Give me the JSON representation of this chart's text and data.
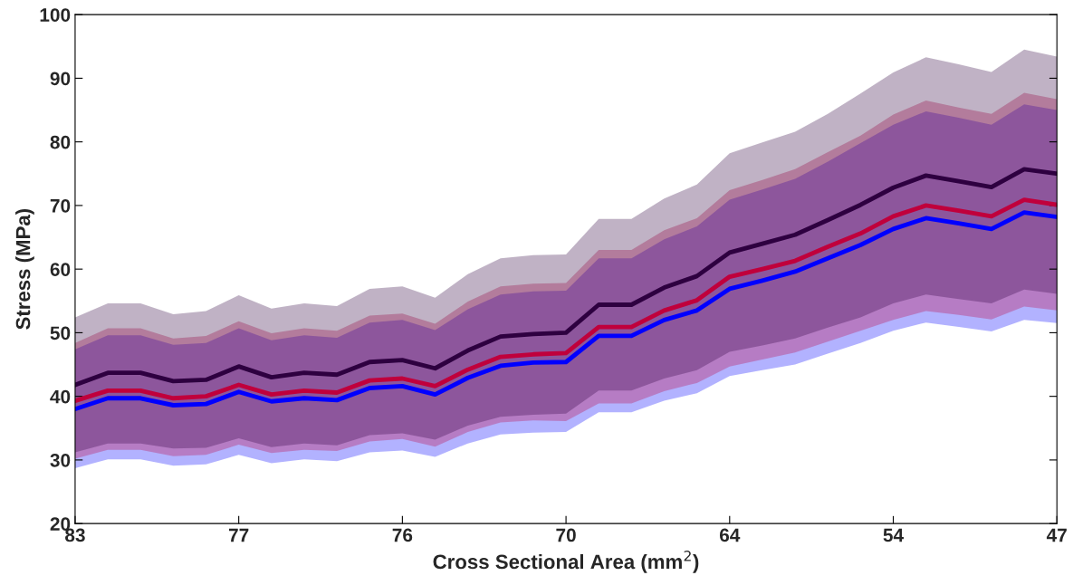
{
  "chart_data": {
    "type": "line",
    "xlabel": "Cross Sectional Area (mm$^{2}$)",
    "ylabel": "Stress (MPa)",
    "categories": [
      "83",
      null,
      null,
      null,
      null,
      "77",
      null,
      null,
      null,
      null,
      "76",
      null,
      null,
      null,
      null,
      "70",
      null,
      null,
      null,
      null,
      "64",
      null,
      null,
      null,
      null,
      "54",
      null,
      null,
      null,
      null,
      "47"
    ],
    "ylim": [
      20,
      100
    ],
    "yticks": [
      20,
      30,
      40,
      50,
      60,
      70,
      80,
      90,
      100
    ],
    "grid": false,
    "legend": false,
    "line_style": "solid",
    "marker": "none",
    "series": [
      {
        "color": "#0000ff",
        "values": [
          38.0,
          39.7,
          39.7,
          38.6,
          38.8,
          40.7,
          39.2,
          39.7,
          39.4,
          41.3,
          41.6,
          40.3,
          42.9,
          44.8,
          45.3,
          45.4,
          49.5,
          49.5,
          52.0,
          53.5,
          56.9,
          58.2,
          59.6,
          61.7,
          63.8,
          66.3,
          68.0,
          67.2,
          66.3,
          68.9,
          68.2
        ],
        "lower": [
          28.7,
          30.1,
          30.1,
          29.1,
          29.3,
          30.8,
          29.5,
          30.1,
          29.8,
          31.2,
          31.5,
          30.5,
          32.6,
          34.0,
          34.3,
          34.4,
          37.5,
          37.5,
          39.3,
          40.5,
          43.2,
          44.1,
          45.0,
          46.7,
          48.4,
          50.3,
          51.6,
          50.9,
          50.2,
          52.0,
          51.5
        ],
        "upper": [
          47.4,
          49.6,
          49.6,
          48.1,
          48.4,
          50.7,
          48.8,
          49.6,
          49.2,
          51.6,
          52.0,
          50.4,
          53.7,
          56.0,
          56.5,
          56.6,
          61.7,
          61.7,
          64.7,
          66.7,
          70.9,
          72.5,
          74.2,
          76.9,
          79.8,
          82.7,
          84.8,
          83.8,
          82.7,
          85.9,
          85.0
        ]
      },
      {
        "color": "#c0003c",
        "values": [
          39.3,
          40.9,
          40.9,
          39.7,
          40.0,
          41.8,
          40.3,
          40.9,
          40.6,
          42.5,
          42.8,
          41.6,
          44.2,
          46.2,
          46.6,
          46.8,
          50.9,
          50.9,
          53.5,
          55.1,
          58.8,
          60.0,
          61.3,
          63.5,
          65.6,
          68.3,
          70.0,
          69.2,
          68.3,
          70.9,
          70.1
        ],
        "lower": [
          30.2,
          31.6,
          31.6,
          30.6,
          30.8,
          32.4,
          31.1,
          31.6,
          31.4,
          32.9,
          33.3,
          32.1,
          34.4,
          35.9,
          36.2,
          36.1,
          38.9,
          38.9,
          40.8,
          42.1,
          44.7,
          45.8,
          46.9,
          48.6,
          50.3,
          52.0,
          53.4,
          52.8,
          52.1,
          54.1,
          53.5
        ],
        "upper": [
          48.4,
          50.7,
          50.7,
          49.1,
          49.5,
          51.8,
          49.9,
          50.7,
          50.3,
          52.7,
          53.0,
          51.4,
          54.9,
          57.3,
          57.7,
          57.8,
          63.0,
          63.0,
          66.1,
          68.0,
          72.4,
          74.0,
          75.7,
          78.4,
          81.0,
          84.3,
          86.5,
          85.4,
          84.4,
          87.7,
          86.7
        ]
      },
      {
        "color": "#2e0040",
        "values": [
          41.8,
          43.7,
          43.7,
          42.4,
          42.6,
          44.7,
          43.0,
          43.7,
          43.4,
          45.4,
          45.7,
          44.4,
          47.2,
          49.4,
          49.8,
          50.0,
          54.4,
          54.4,
          57.1,
          58.9,
          62.6,
          64.0,
          65.4,
          67.7,
          70.1,
          72.8,
          74.7,
          73.8,
          72.9,
          75.7,
          75.0
        ],
        "lower": [
          31.2,
          32.6,
          32.6,
          31.8,
          31.9,
          33.4,
          32.0,
          32.6,
          32.3,
          33.9,
          34.2,
          33.2,
          35.4,
          36.8,
          37.1,
          37.3,
          40.9,
          40.9,
          42.8,
          44.1,
          47.0,
          48.0,
          49.1,
          50.8,
          52.4,
          54.6,
          56.0,
          55.3,
          54.6,
          56.8,
          56.1
        ],
        "upper": [
          52.4,
          54.6,
          54.6,
          52.9,
          53.4,
          55.9,
          53.8,
          54.6,
          54.2,
          56.9,
          57.3,
          55.5,
          59.2,
          61.7,
          62.2,
          62.3,
          67.9,
          67.9,
          71.1,
          73.3,
          78.2,
          79.9,
          81.6,
          84.4,
          87.6,
          90.9,
          93.3,
          92.2,
          91.0,
          94.5,
          93.4
        ]
      }
    ]
  }
}
